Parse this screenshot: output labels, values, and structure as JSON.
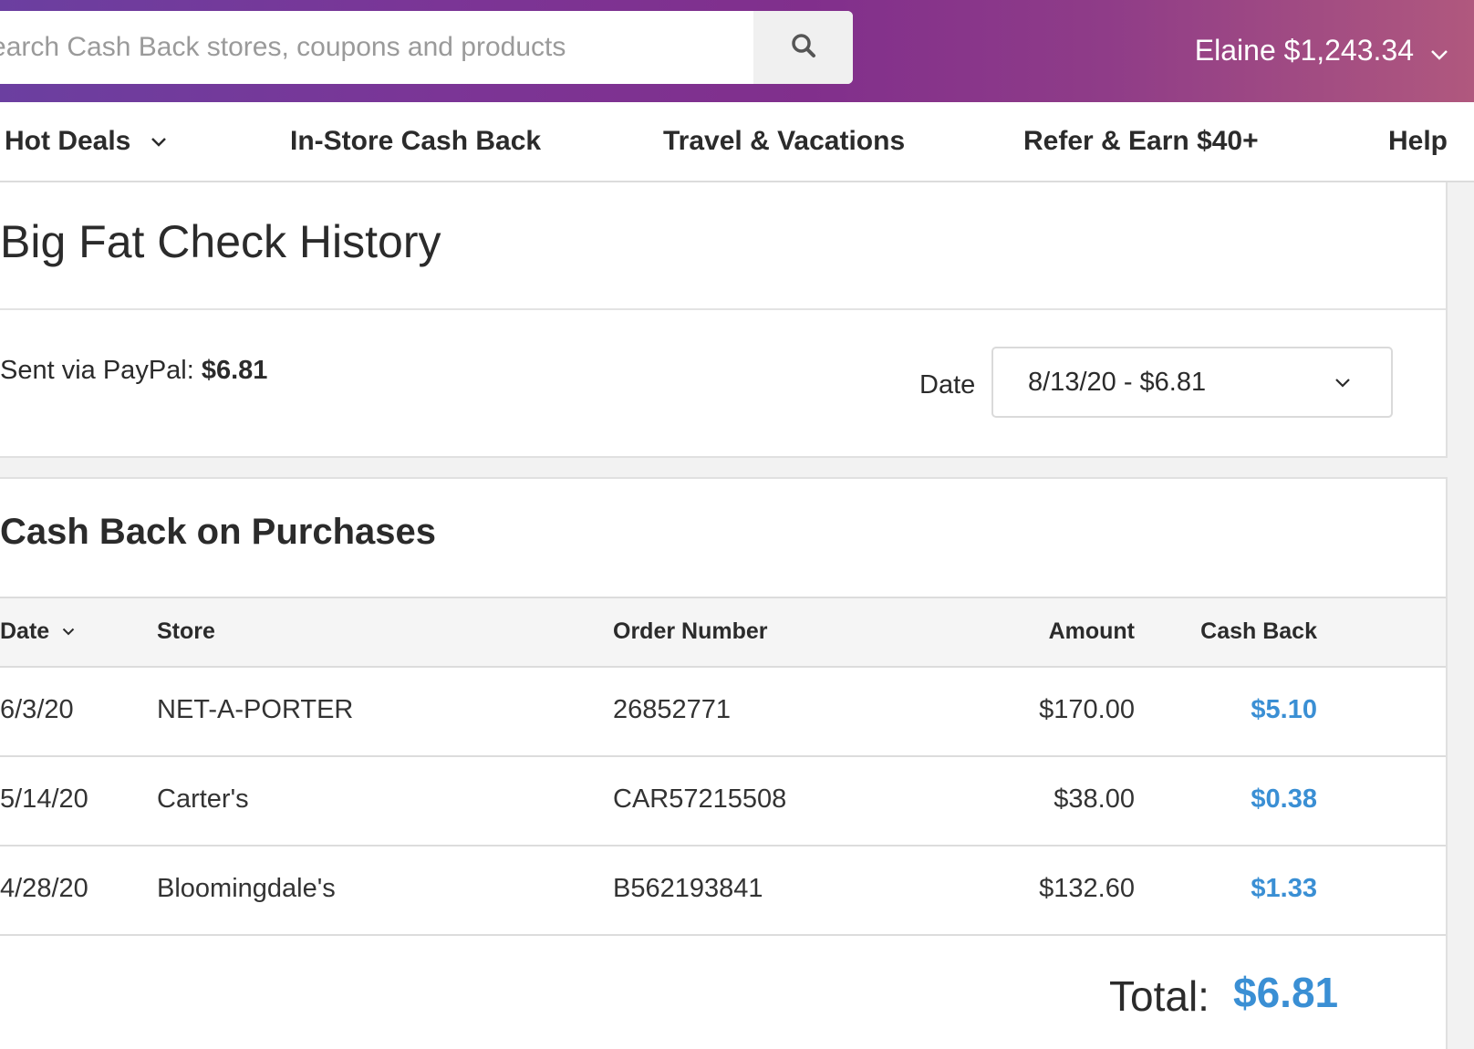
{
  "header": {
    "search_placeholder": "Search Cash Back stores, coupons and products",
    "account_label": "Elaine $1,243.34",
    "icons": {
      "search": "search-icon",
      "account_menu": "chevron-down-icon"
    }
  },
  "nav": {
    "items": [
      {
        "label": "Hot Deals",
        "has_dropdown": true
      },
      {
        "label": "In-Store Cash Back"
      },
      {
        "label": "Travel & Vacations"
      },
      {
        "label": "Refer & Earn $40+"
      },
      {
        "label": "Help"
      }
    ]
  },
  "check_history": {
    "title": "Big Fat Check History",
    "sent_label": "Sent via PayPal:",
    "sent_amount": "$6.81",
    "date_label": "Date",
    "date_selected": "8/13/20 - $6.81"
  },
  "purchases": {
    "title": "Cash Back on Purchases",
    "columns": [
      "Date",
      "Store",
      "Order Number",
      "Amount",
      "Cash Back"
    ],
    "rows": [
      {
        "date": "6/3/20",
        "store": "NET-A-PORTER",
        "order": "26852771",
        "amount": "$170.00",
        "cash_back": "$5.10"
      },
      {
        "date": "5/14/20",
        "store": "Carter's",
        "order": "CAR57215508",
        "amount": "$38.00",
        "cash_back": "$0.38"
      },
      {
        "date": "4/28/20",
        "store": "Bloomingdale's",
        "order": "B562193841",
        "amount": "$132.60",
        "cash_back": "$1.33"
      }
    ],
    "total_label": "Total:",
    "total_value": "$6.81"
  },
  "colors": {
    "accent_blue": "#3a8fd4",
    "header_start": "#6b3fa0",
    "header_end": "#b0587e"
  }
}
